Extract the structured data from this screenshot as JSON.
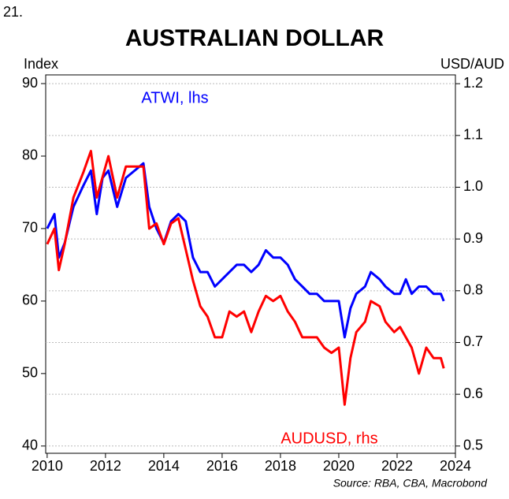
{
  "page_number": "21.",
  "chart_data": {
    "type": "line",
    "title": "AUSTRALIAN DOLLAR",
    "ylabel": "Index",
    "y2label": "USD/AUD",
    "source": "Source: RBA, CBA, Macrobond",
    "x": [
      2010.0,
      2010.25,
      2010.4,
      2010.6,
      2010.9,
      2011.25,
      2011.5,
      2011.7,
      2011.9,
      2012.1,
      2012.4,
      2012.7,
      2013.0,
      2013.3,
      2013.5,
      2013.75,
      2014.0,
      2014.25,
      2014.5,
      2014.75,
      2015.0,
      2015.25,
      2015.5,
      2015.75,
      2016.0,
      2016.25,
      2016.5,
      2016.75,
      2017.0,
      2017.25,
      2017.5,
      2017.75,
      2018.0,
      2018.25,
      2018.5,
      2018.75,
      2019.0,
      2019.25,
      2019.5,
      2019.75,
      2020.0,
      2020.2,
      2020.4,
      2020.6,
      2020.9,
      2021.1,
      2021.4,
      2021.6,
      2021.9,
      2022.1,
      2022.3,
      2022.5,
      2022.75,
      2023.0,
      2023.25,
      2023.5,
      2023.6
    ],
    "series": [
      {
        "name": "ATWI, lhs",
        "color": "#0000ff",
        "values": [
          70,
          72,
          66,
          68,
          73,
          76,
          78,
          72,
          77,
          78,
          73,
          77,
          78,
          79,
          73,
          70,
          68,
          71,
          72,
          71,
          66,
          64,
          64,
          62,
          63,
          64,
          65,
          65,
          64,
          65,
          67,
          66,
          66,
          65,
          63,
          62,
          61,
          61,
          60,
          60,
          60,
          55,
          59,
          61,
          62,
          64,
          63,
          62,
          61,
          61,
          63,
          61,
          62,
          62,
          61,
          61,
          60
        ]
      },
      {
        "name": "AUDUSD, rhs",
        "color": "#ff0000",
        "axis": "y2",
        "values": [
          0.89,
          0.92,
          0.84,
          0.89,
          0.98,
          1.03,
          1.07,
          0.98,
          1.02,
          1.06,
          0.98,
          1.04,
          1.04,
          1.04,
          0.92,
          0.93,
          0.89,
          0.93,
          0.94,
          0.88,
          0.82,
          0.77,
          0.75,
          0.71,
          0.71,
          0.76,
          0.75,
          0.76,
          0.72,
          0.76,
          0.79,
          0.78,
          0.79,
          0.76,
          0.74,
          0.71,
          0.71,
          0.71,
          0.69,
          0.68,
          0.69,
          0.58,
          0.67,
          0.72,
          0.74,
          0.78,
          0.77,
          0.74,
          0.72,
          0.73,
          0.71,
          0.69,
          0.64,
          0.69,
          0.67,
          0.67,
          0.65
        ]
      }
    ],
    "xlim": [
      2009.95,
      2024
    ],
    "xticks": [
      2010,
      2012,
      2014,
      2016,
      2018,
      2020,
      2022,
      2024
    ],
    "ylim": [
      39,
      91.2
    ],
    "yticks": [
      40,
      50,
      60,
      70,
      80,
      90
    ],
    "y2lim": [
      0.486,
      1.217
    ],
    "y2ticks": [
      0.5,
      0.6,
      0.7,
      0.8,
      0.9,
      {
        "value": 1,
        "label": "1.0"
      },
      1.1,
      1.2
    ],
    "grid": true
  }
}
